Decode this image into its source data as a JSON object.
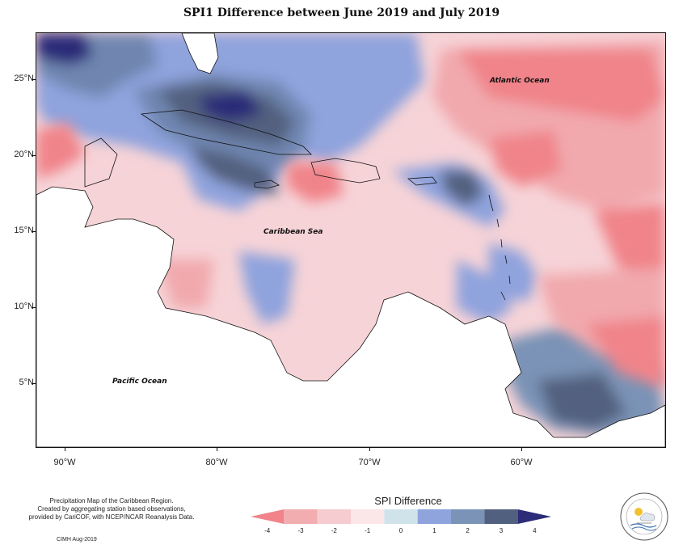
{
  "title": "SPI1 Difference between June 2019 and July 2019",
  "latitudes": [
    "25°N",
    "20°N",
    "15°N",
    "10°N",
    "5°N"
  ],
  "longitudes": [
    "90°W",
    "80°W",
    "70°W",
    "60°W"
  ],
  "ocean_labels": {
    "atlantic": "Atlantic Ocean",
    "caribbean": "Caribbean Sea",
    "pacific": "Pacific Ocean"
  },
  "credits": {
    "line1": "Precipitation Map of the Caribbean Region.",
    "line2": "Created by aggregating station based observations,",
    "line3": "provided by CariCOF, with NCEP/NCAR Reanalysis Data.",
    "date": "CIMH Aug-2019"
  },
  "legend": {
    "title": "SPI Difference",
    "ticks": [
      "-4",
      "-3",
      "-2",
      "-1",
      "0",
      "1",
      "2",
      "3",
      "4"
    ],
    "colors": [
      "#f0848a",
      "#f1adb0",
      "#f6ccd0",
      "#fbe6e8",
      "#d1e3ea",
      "#8fa3dd",
      "#7a93b6",
      "#52607f",
      "#2c2c78"
    ]
  },
  "colors": {
    "land": "#ffffff",
    "coast": "#111111"
  },
  "logo": {
    "icon": "cimh-logo-icon"
  }
}
